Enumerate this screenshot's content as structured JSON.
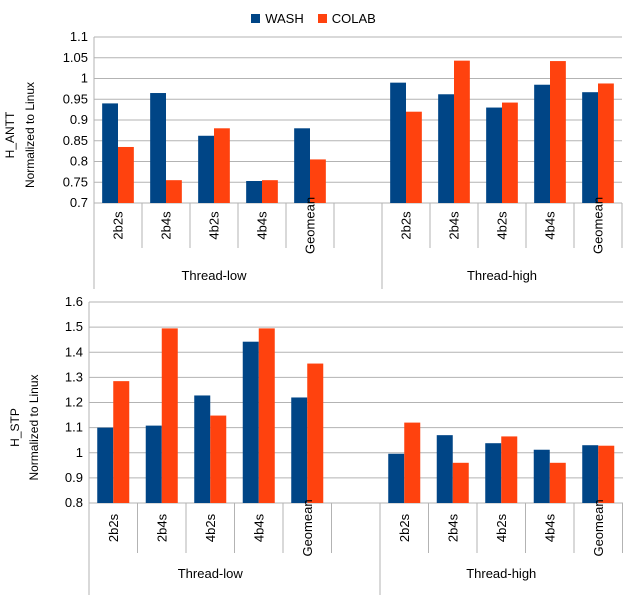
{
  "colors": {
    "wash": "#004586",
    "colab": "#ff420e",
    "grid": "#b3b3b3",
    "axis": "#b3b3b3"
  },
  "legend": [
    {
      "name": "WASH",
      "color": "#004586"
    },
    {
      "name": "COLAB",
      "color": "#ff420e"
    }
  ],
  "chart_data": [
    {
      "type": "bar",
      "ylabel_top": "H_ANTT",
      "ylabel_bottom": "Normalized to Linux",
      "ylim": [
        0.7,
        1.1
      ],
      "yticks": [
        "0.7",
        "0.75",
        "0.8",
        "0.85",
        "0.9",
        "0.95",
        "1",
        "1.05",
        "1.1"
      ],
      "grid": true,
      "categories": [
        "2b2s",
        "2b4s",
        "4b2s",
        "4b4s",
        "Geomean",
        "",
        "2b2s",
        "2b4s",
        "4b2s",
        "4b4s",
        "Geomean"
      ],
      "groups": [
        {
          "label": "Thread-low",
          "categories": 5
        },
        {
          "label": "Thread-high",
          "categories": 5
        }
      ],
      "series": [
        {
          "name": "WASH",
          "values": [
            0.94,
            0.965,
            0.862,
            0.753,
            0.88,
            null,
            0.99,
            0.962,
            0.93,
            0.985,
            0.967
          ]
        },
        {
          "name": "COLAB",
          "values": [
            0.835,
            0.755,
            0.88,
            0.755,
            0.805,
            null,
            0.92,
            1.043,
            0.942,
            1.042,
            0.988
          ]
        }
      ]
    },
    {
      "type": "bar",
      "ylabel_top": "H_STP",
      "ylabel_bottom": "Normalized to Linux",
      "ylim": [
        0.8,
        1.6
      ],
      "yticks": [
        "0.8",
        "0.9",
        "1",
        "1.1",
        "1.2",
        "1.3",
        "1.4",
        "1.5",
        "1.6"
      ],
      "grid": true,
      "categories": [
        "2b2s",
        "2b4s",
        "4b2s",
        "4b4s",
        "Geomean",
        "",
        "2b2s",
        "2b4s",
        "4b2s",
        "4b4s",
        "Geomean"
      ],
      "groups": [
        {
          "label": "Thread-low",
          "categories": 5
        },
        {
          "label": "Thread-high",
          "categories": 5
        }
      ],
      "series": [
        {
          "name": "WASH",
          "values": [
            1.1,
            1.108,
            1.228,
            1.442,
            1.22,
            null,
            0.996,
            1.07,
            1.038,
            1.012,
            1.03
          ]
        },
        {
          "name": "COLAB",
          "values": [
            1.285,
            1.495,
            1.148,
            1.495,
            1.355,
            null,
            1.12,
            0.96,
            1.065,
            0.96,
            1.028
          ]
        }
      ]
    }
  ]
}
